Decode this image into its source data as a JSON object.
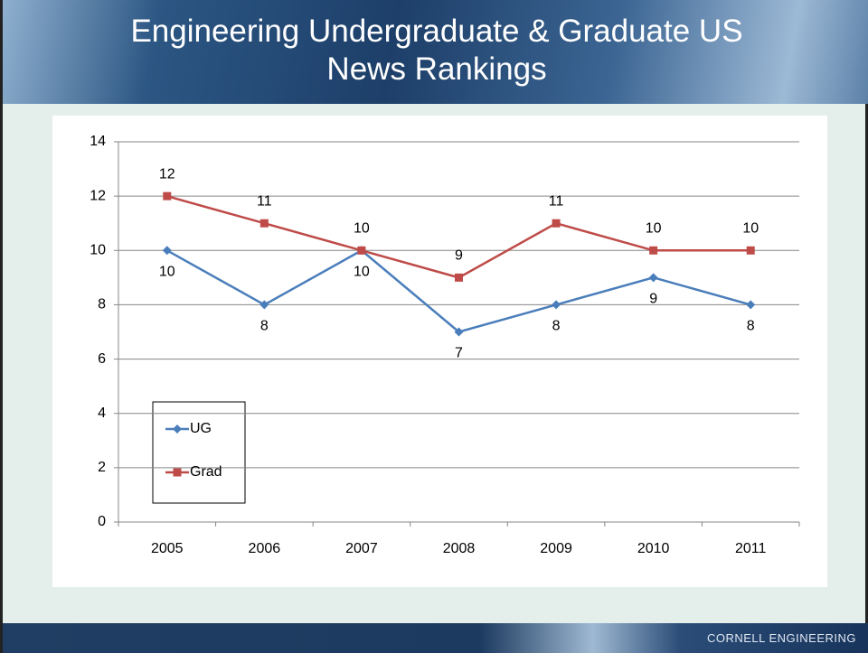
{
  "chart_data": {
    "type": "line",
    "title": "Engineering Undergraduate & Graduate US News Rankings",
    "categories": [
      "2005",
      "2006",
      "2007",
      "2008",
      "2009",
      "2010",
      "2011"
    ],
    "series": [
      {
        "name": "UG",
        "color": "#4a7ebb",
        "marker": "diamond",
        "label_position": "below",
        "values": [
          10,
          8,
          10,
          7,
          8,
          9,
          8
        ]
      },
      {
        "name": "Grad",
        "color": "#be4b48",
        "marker": "square",
        "label_position": "above",
        "values": [
          12,
          11,
          10,
          9,
          11,
          10,
          10
        ]
      }
    ],
    "ylim": [
      0,
      14
    ],
    "yticks": [
      0,
      2,
      4,
      6,
      8,
      10,
      12,
      14
    ],
    "grid": true,
    "legend": "left"
  },
  "footer": "CORNELL ENGINEERING"
}
